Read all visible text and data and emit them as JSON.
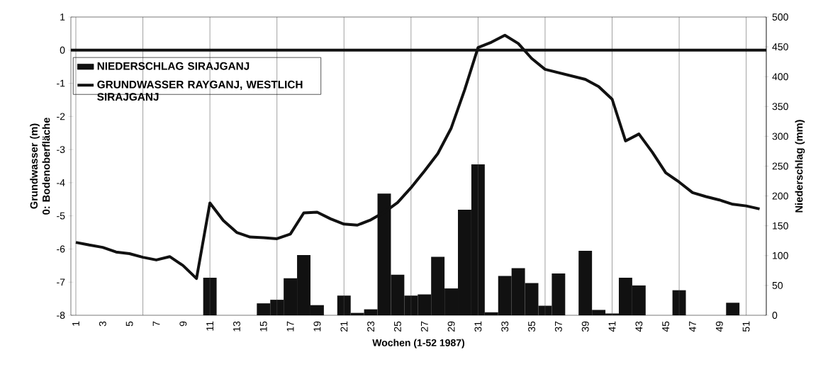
{
  "chart_data": {
    "type": "bar",
    "xlabel": "Wochen (1-52 1987)",
    "ylabel": "Grundwasser (m) 0: Bodenoberfläche",
    "y2label": "Niederschlag (mm)",
    "categories": [
      "1",
      null,
      "3",
      null,
      "5",
      null,
      "7",
      null,
      "9",
      null,
      "11",
      null,
      "13",
      null,
      "15",
      null,
      "17",
      null,
      "19",
      null,
      "21",
      null,
      "23",
      null,
      "25",
      null,
      "27",
      null,
      "29",
      null,
      "31",
      null,
      "33",
      null,
      "35",
      null,
      "37",
      null,
      "39",
      null,
      "41",
      null,
      "43",
      null,
      "45",
      null,
      "47",
      null,
      "49",
      null,
      "51",
      null
    ],
    "series": [
      {
        "name": "NIEDERSCHLAG SIRAJGANJ",
        "axis": "y2",
        "color": "#111111",
        "values": [
          0,
          0,
          0,
          0,
          0,
          0,
          0,
          0,
          0,
          0,
          63,
          0,
          0,
          0,
          20,
          26,
          62,
          101,
          17,
          0,
          33,
          4,
          10,
          204,
          68,
          33,
          35,
          98,
          45,
          177,
          253,
          5,
          66,
          79,
          54,
          16,
          70,
          0,
          108,
          9,
          3,
          63,
          50,
          0,
          0,
          42,
          0,
          0,
          0,
          21,
          0,
          0
        ]
      },
      {
        "name": "GRUNDWASSER RAYGANJ, WESTLICH SIRAJGANJ",
        "type": "line",
        "axis": "y",
        "color": "#111111",
        "values": [
          -5.8,
          -5.88,
          -5.95,
          -6.09,
          -6.14,
          -6.25,
          -6.33,
          -6.23,
          -6.5,
          -6.89,
          -4.61,
          -5.14,
          -5.5,
          -5.64,
          -5.66,
          -5.69,
          -5.55,
          -4.91,
          -4.89,
          -5.09,
          -5.25,
          -5.28,
          -5.12,
          -4.89,
          -4.6,
          -4.15,
          -3.65,
          -3.12,
          -2.35,
          -1.2,
          0.08,
          0.24,
          0.45,
          0.2,
          -0.25,
          -0.58,
          -0.68,
          -0.78,
          -0.88,
          -1.1,
          -1.48,
          -2.74,
          -2.53,
          -3.08,
          -3.7,
          -3.98,
          -4.3,
          -4.42,
          -4.52,
          -4.65,
          -4.7,
          -4.79
        ]
      }
    ],
    "ylim": [
      -8,
      1
    ],
    "yticks": [
      -8,
      -7,
      -6,
      -5,
      -4,
      -3,
      -2,
      -1,
      0,
      1
    ],
    "y2lim": [
      0,
      500
    ],
    "y2ticks": [
      0,
      50,
      100,
      150,
      200,
      250,
      300,
      350,
      400,
      450,
      500
    ],
    "ref_lines": [
      {
        "axis": "y",
        "value": 0,
        "color": "#111111"
      }
    ],
    "grid": "x",
    "legend": "top left"
  }
}
